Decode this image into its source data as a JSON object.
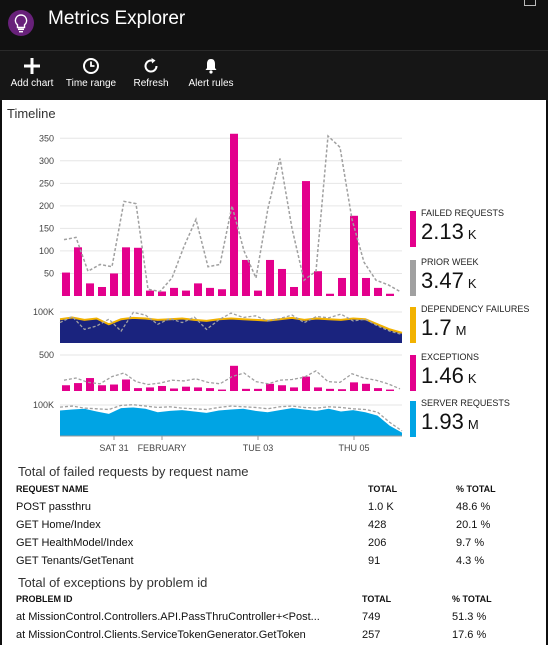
{
  "app": {
    "title": "Metrics Explorer"
  },
  "toolbar": [
    {
      "label": "Add chart",
      "icon": "plus-icon"
    },
    {
      "label": "Time range",
      "icon": "clock-icon"
    },
    {
      "label": "Refresh",
      "icon": "refresh-icon"
    },
    {
      "label": "Alert rules",
      "icon": "bell-icon"
    }
  ],
  "timeline": {
    "label": "Timeline"
  },
  "colors": {
    "failed": "#e3008c",
    "prior": "#a0a0a0",
    "dependency": "#f2b200",
    "navy": "#1a237e",
    "server": "#00a4e4"
  },
  "metrics": [
    {
      "name": "FAILED REQUESTS",
      "value": "2.13",
      "unit": "K",
      "color": "#e3008c"
    },
    {
      "name": "PRIOR WEEK",
      "value": "3.47",
      "unit": "K",
      "color": "#a0a0a0"
    },
    {
      "name": "DEPENDENCY FAILURES",
      "value": "1.7",
      "unit": "M",
      "color": "#f2b200"
    },
    {
      "name": "EXCEPTIONS",
      "value": "1.46",
      "unit": "K",
      "color": "#e3008c"
    },
    {
      "name": "SERVER REQUESTS",
      "value": "1.93",
      "unit": "M",
      "color": "#00a4e4"
    }
  ],
  "chart_data": [
    {
      "type": "bar",
      "title": "Failed requests",
      "ylim": [
        0,
        375
      ],
      "yticks": [
        50,
        100,
        150,
        200,
        250,
        300,
        350
      ],
      "series": [
        {
          "name": "FAILED REQUESTS",
          "values": [
            52,
            108,
            28,
            20,
            50,
            108,
            107,
            12,
            10,
            18,
            12,
            28,
            18,
            15,
            360,
            80,
            12,
            80,
            60,
            20,
            255,
            55,
            5,
            40,
            178,
            40,
            18,
            5
          ]
        },
        {
          "name": "PRIOR WEEK",
          "values": [
            125,
            130,
            55,
            70,
            65,
            210,
            205,
            15,
            10,
            40,
            110,
            170,
            65,
            70,
            200,
            100,
            40,
            195,
            305,
            150,
            35,
            55,
            355,
            330,
            170,
            75,
            35,
            25,
            10
          ]
        }
      ]
    },
    {
      "type": "area",
      "title": "Dependency failures",
      "yticks": [
        "100K"
      ],
      "series": [
        {
          "name": "DEPENDENCY FAILURES",
          "values": [
            70,
            75,
            68,
            72,
            55,
            70,
            74,
            72,
            68,
            70,
            72,
            68,
            65,
            70,
            72,
            70,
            68,
            66,
            70,
            74,
            68,
            72,
            70,
            68,
            72,
            70,
            55,
            40,
            30
          ]
        },
        {
          "name": "PRIOR WEEK",
          "values": [
            60,
            78,
            40,
            50,
            70,
            35,
            90,
            82,
            55,
            72,
            60,
            76,
            40,
            68,
            88,
            75,
            80,
            65,
            72,
            82,
            60,
            78,
            74,
            85,
            65,
            70,
            50,
            35,
            25
          ]
        }
      ]
    },
    {
      "type": "bar",
      "title": "Exceptions",
      "yticks": [
        500
      ],
      "series": [
        {
          "name": "EXCEPTIONS",
          "values": [
            80,
            110,
            180,
            80,
            90,
            160,
            40,
            50,
            70,
            35,
            60,
            50,
            40,
            20,
            350,
            30,
            30,
            100,
            80,
            50,
            200,
            50,
            30,
            25,
            120,
            100,
            40,
            20
          ]
        },
        {
          "name": "PRIOR WEEK",
          "values": [
            150,
            180,
            120,
            100,
            200,
            250,
            130,
            90,
            110,
            150,
            140,
            170,
            120,
            100,
            200,
            250,
            130,
            100,
            150,
            160,
            190,
            280,
            130,
            120,
            240,
            180,
            150,
            100,
            30
          ]
        }
      ]
    },
    {
      "type": "area",
      "title": "Server requests",
      "yticks": [
        "100K"
      ],
      "xticks": [
        {
          "at": 4.5,
          "label": "SAT 31"
        },
        {
          "at": 8.5,
          "label": "FEBRUARY"
        },
        {
          "at": 16.5,
          "label": "TUE 03"
        },
        {
          "at": 24.5,
          "label": "THU 05"
        }
      ],
      "series": [
        {
          "name": "SERVER REQUESTS",
          "values": [
            75,
            78,
            80,
            72,
            65,
            82,
            84,
            80,
            70,
            74,
            76,
            72,
            68,
            75,
            78,
            80,
            74,
            70,
            76,
            82,
            78,
            74,
            80,
            72,
            76,
            70,
            60,
            30,
            10
          ]
        },
        {
          "name": "PRIOR WEEK",
          "values": [
            85,
            88,
            82,
            80,
            78,
            90,
            92,
            88,
            84,
            86,
            82,
            80,
            78,
            84,
            88,
            86,
            84,
            80,
            86,
            88,
            84,
            82,
            86,
            84,
            80,
            78,
            70,
            40,
            15
          ]
        }
      ]
    }
  ],
  "failed_table": {
    "title": "Total of failed requests by request name",
    "headers": [
      "REQUEST NAME",
      "TOTAL",
      "% TOTAL"
    ],
    "rows": [
      [
        "POST passthru",
        "1.0 K",
        "48.6 %"
      ],
      [
        "GET Home/Index",
        "428",
        "20.1 %"
      ],
      [
        "GET HealthModel/Index",
        "206",
        "9.7 %"
      ],
      [
        "GET Tenants/GetTenant",
        "91",
        "4.3 %"
      ]
    ]
  },
  "exceptions_table": {
    "title": "Total of exceptions by problem id",
    "headers": [
      "PROBLEM ID",
      "TOTAL",
      "% TOTAL"
    ],
    "rows": [
      [
        "at MissionControl.Controllers.API.PassThruController+<Post...",
        "749",
        "51.3 %"
      ],
      [
        "at MissionControl.Clients.ServiceTokenGenerator.GetToken",
        "257",
        "17.6 %"
      ]
    ]
  }
}
